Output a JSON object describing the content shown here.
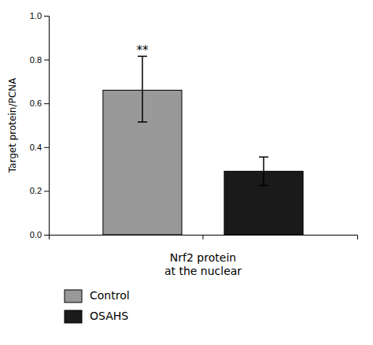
{
  "chart_data": {
    "type": "bar",
    "categories": [
      null
    ],
    "series": [
      {
        "name": "Control",
        "color": "#999999",
        "values": [
          0.66
        ],
        "errors_upper": [
          0.155
        ],
        "errors_lower": [
          0.145
        ]
      },
      {
        "name": "OSAHS",
        "color": "#1a1a1a",
        "values": [
          0.29
        ],
        "errors_upper": [
          0.065
        ],
        "errors_lower": [
          0.065
        ]
      }
    ],
    "ylabel": "Target protein/PCNA",
    "xlabel": "Nrf2 protein\nat the nuclear",
    "ylim": [
      0.0,
      1.0
    ],
    "yticks": [
      {
        "value": 0.0,
        "label": "0.0"
      },
      {
        "value": 0.2,
        "label": "0.2"
      },
      {
        "value": 0.4,
        "label": "0.4"
      },
      {
        "value": 0.6,
        "label": "0.6"
      },
      {
        "value": 0.8,
        "label": "0.8"
      },
      {
        "value": 1.0,
        "label": "1.0"
      }
    ],
    "annotations": [
      {
        "text": "**",
        "series": 0,
        "y": 0.825
      }
    ],
    "legend": "bottom",
    "grid": false
  }
}
